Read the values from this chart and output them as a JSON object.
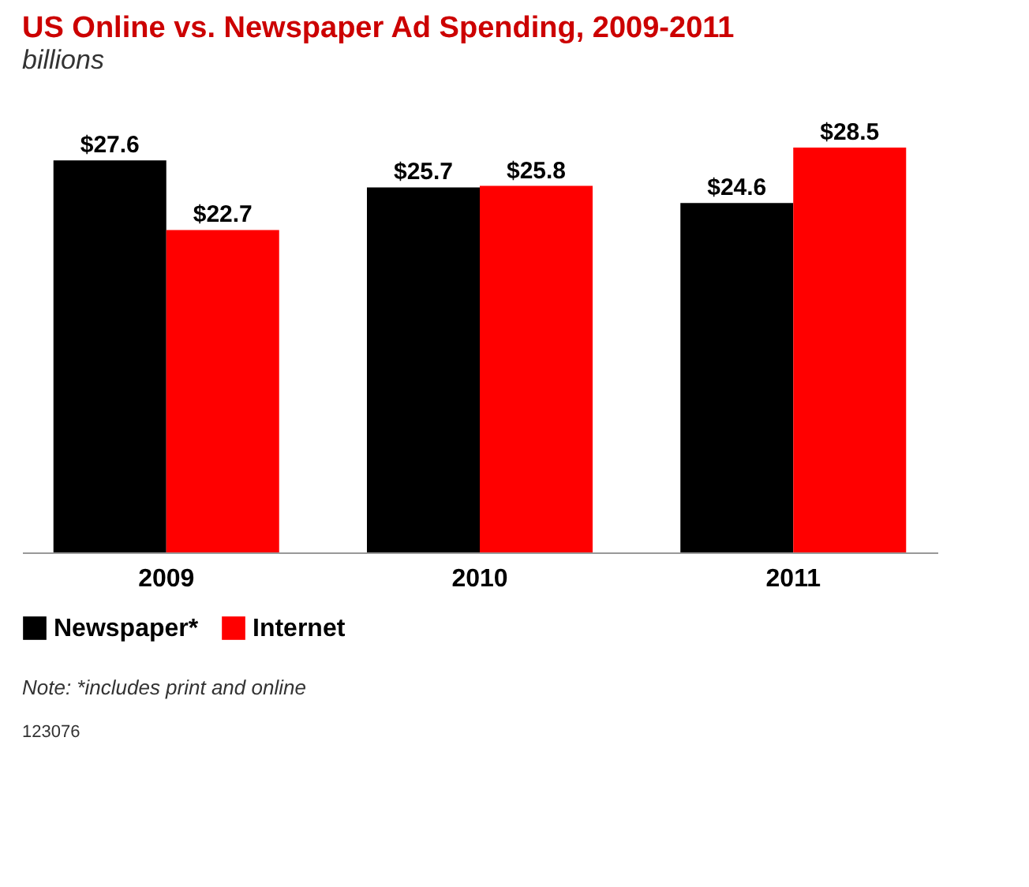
{
  "chart_data": {
    "type": "bar",
    "title": "US Online vs. Newspaper Ad Spending, 2009-2011",
    "subtitle": "billions",
    "categories": [
      "2009",
      "2010",
      "2011"
    ],
    "series": [
      {
        "name": "Newspaper*",
        "color": "#000000",
        "values": [
          27.6,
          25.7,
          24.6
        ],
        "value_labels": [
          "$27.6",
          "$25.7",
          "$24.6"
        ]
      },
      {
        "name": "Internet",
        "color": "#ff0000",
        "values": [
          22.7,
          25.8,
          28.5
        ],
        "value_labels": [
          "$22.7",
          "$25.8",
          "$28.5"
        ]
      }
    ],
    "legend": "bottom left",
    "grid": false,
    "annotations": [
      "Note: *includes print and online",
      "123076"
    ]
  }
}
